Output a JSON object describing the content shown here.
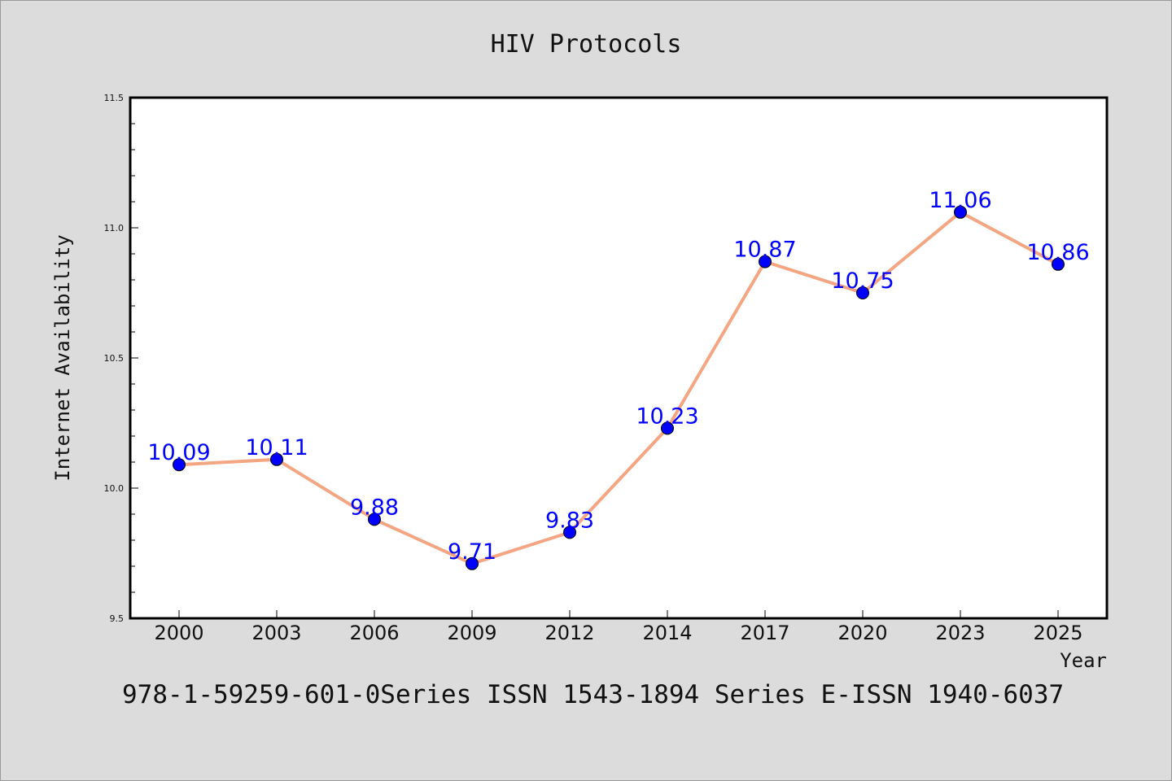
{
  "chart_data": {
    "type": "line",
    "title": "HIV Protocols",
    "xlabel": "Year",
    "ylabel": "Internet Availability",
    "categories": [
      "2000",
      "2003",
      "2006",
      "2009",
      "2012",
      "2014",
      "2017",
      "2020",
      "2023",
      "2025"
    ],
    "series": [
      {
        "values": [
          10.09,
          10.11,
          9.88,
          9.71,
          9.83,
          10.23,
          10.87,
          10.75,
          11.06,
          10.86
        ],
        "line_color": "#f4a582",
        "marker_color": "#0000ff"
      }
    ],
    "data_labels": [
      "10.09",
      "10.11",
      "9.88",
      "9.71",
      "9.83",
      "10.23",
      "10.87",
      "10.75",
      "11.06",
      "10.86"
    ],
    "ylim": [
      9.5,
      11.5
    ],
    "yticks": [
      "9.5",
      "10.0",
      "10.5",
      "11.0",
      "11.5"
    ],
    "grid": false,
    "legend": "none"
  },
  "footer": {
    "text": "978-1-59259-601-0Series ISSN 1543-1894 Series E-ISSN 1940-6037"
  }
}
